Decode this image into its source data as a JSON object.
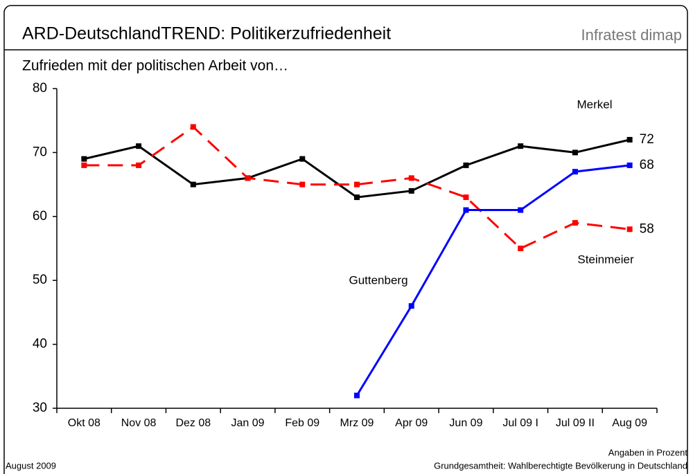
{
  "header": {
    "title": "ARD-DeutschlandTREND: Politikerzufriedenheit",
    "brand": "Infratest dimap"
  },
  "chart_data": {
    "type": "line",
    "title": "Zufrieden mit der politischen Arbeit von…",
    "categories": [
      "Okt 08",
      "Nov 08",
      "Dez 08",
      "Jan 09",
      "Feb 09",
      "Mrz 09",
      "Apr 09",
      "Jun 09",
      "Jul 09 I",
      "Jul 09 II",
      "Aug 09"
    ],
    "series": [
      {
        "name": "Merkel",
        "color": "#000000",
        "dash": false,
        "values": [
          69,
          71,
          65,
          66,
          69,
          63,
          64,
          68,
          71,
          70,
          72
        ]
      },
      {
        "name": "Steinmeier",
        "color": "#ff0000",
        "dash": true,
        "values": [
          68,
          68,
          74,
          66,
          65,
          65,
          66,
          63,
          55,
          59,
          58
        ]
      },
      {
        "name": "Guttenberg",
        "color": "#0000ff",
        "dash": false,
        "values": [
          null,
          null,
          null,
          null,
          null,
          32,
          46,
          61,
          61,
          67,
          68
        ]
      }
    ],
    "ylim": [
      30,
      80
    ],
    "yticks": [
      30,
      40,
      50,
      60,
      70,
      80
    ],
    "grid": false
  },
  "footer": {
    "date": "August 2009",
    "note": "Angaben in Prozent",
    "base": "Grundgesamtheit: Wahlberechtigte Bevölkerung in Deutschland"
  }
}
